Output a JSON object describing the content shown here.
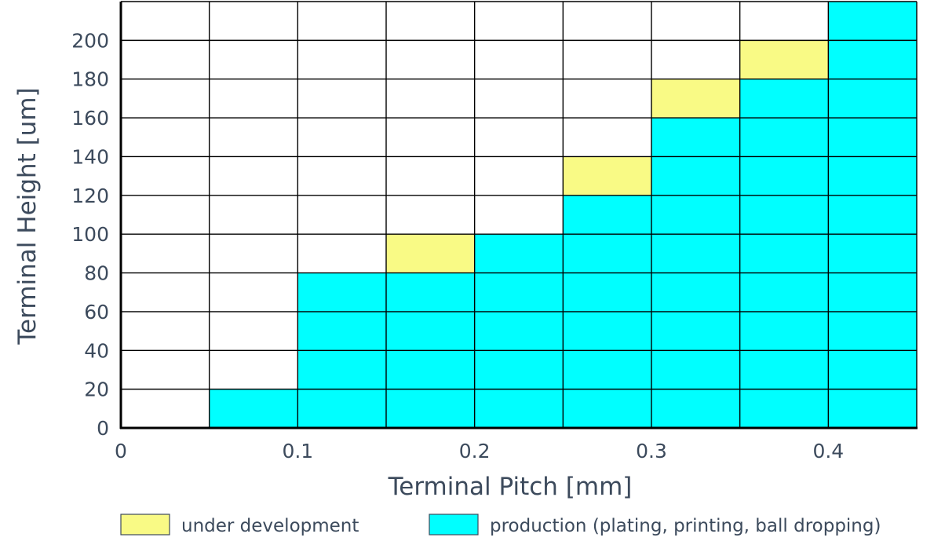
{
  "chart_data": {
    "type": "heatmap",
    "title": "",
    "xlabel": "Terminal Pitch [mm]",
    "ylabel": "Terminal Height [um]",
    "xlim": [
      0,
      0.45
    ],
    "ylim": [
      0,
      220
    ],
    "x_bin_width": 0.05,
    "y_bin_width": 20,
    "x_ticks": [
      0,
      0.1,
      0.2,
      0.3,
      0.4
    ],
    "x_tick_labels": [
      "0",
      "0.1",
      "0.2",
      "0.3",
      "0.4"
    ],
    "y_ticks": [
      0,
      20,
      40,
      60,
      80,
      100,
      120,
      140,
      160,
      180,
      200
    ],
    "y_tick_labels": [
      "0",
      "20",
      "40",
      "60",
      "80",
      "100",
      "120",
      "140",
      "160",
      "180",
      "200"
    ],
    "grid": true,
    "legend_position": "bottom",
    "categories": [
      {
        "name": "under development",
        "color": "#f9fa85"
      },
      {
        "name": "production (plating, printing, ball dropping)",
        "color": "#00ffff"
      }
    ],
    "columns": [
      {
        "pitch_start": 0.05,
        "production_max_height": 20,
        "development_max_height": 20
      },
      {
        "pitch_start": 0.1,
        "production_max_height": 80,
        "development_max_height": 80
      },
      {
        "pitch_start": 0.15,
        "production_max_height": 80,
        "development_max_height": 100
      },
      {
        "pitch_start": 0.2,
        "production_max_height": 100,
        "development_max_height": 100
      },
      {
        "pitch_start": 0.25,
        "production_max_height": 120,
        "development_max_height": 140
      },
      {
        "pitch_start": 0.3,
        "production_max_height": 160,
        "development_max_height": 180
      },
      {
        "pitch_start": 0.35,
        "production_max_height": 180,
        "development_max_height": 200
      },
      {
        "pitch_start": 0.4,
        "production_max_height": 220,
        "development_max_height": 220
      }
    ]
  }
}
